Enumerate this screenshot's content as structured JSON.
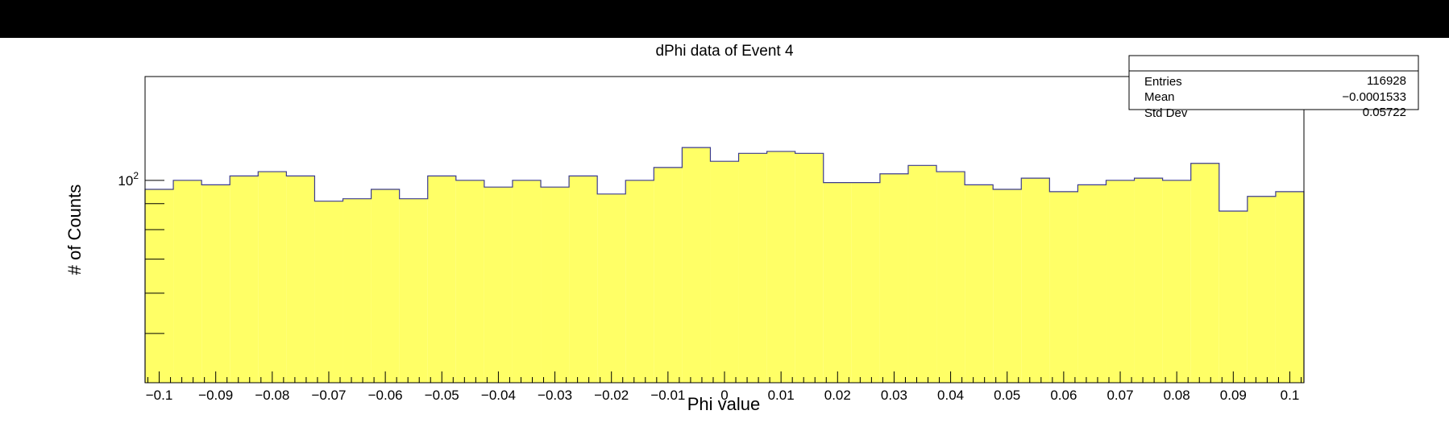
{
  "chart_data": {
    "type": "histogram",
    "title": "dPhi data of Event 4",
    "xlabel": "Phi value",
    "ylabel": "# of Counts",
    "xlim": [
      -0.1025,
      0.1025
    ],
    "ylog": true,
    "ylim": [
      40,
      160
    ],
    "fill_color": "#ffff66",
    "line_color": "#3b3b8f",
    "y_tick_labels": [
      {
        "value": 100,
        "base": "10",
        "exp": "2"
      }
    ],
    "x_tick_labels": [
      "−0.1",
      "−0.09",
      "−0.08",
      "−0.07",
      "−0.06",
      "−0.05",
      "−0.04",
      "−0.03",
      "−0.02",
      "−0.01",
      "0",
      "0.01",
      "0.02",
      "0.03",
      "0.04",
      "0.05",
      "0.06",
      "0.07",
      "0.08",
      "0.09",
      "0.1"
    ],
    "x_tick_values": [
      -0.1,
      -0.09,
      -0.08,
      -0.07,
      -0.06,
      -0.05,
      -0.04,
      -0.03,
      -0.02,
      -0.01,
      0,
      0.01,
      0.02,
      0.03,
      0.04,
      0.05,
      0.06,
      0.07,
      0.08,
      0.09,
      0.1
    ],
    "bin_edges": [
      -0.1025,
      -0.0975,
      -0.0925,
      -0.0875,
      -0.0825,
      -0.0775,
      -0.0725,
      -0.0675,
      -0.0625,
      -0.0575,
      -0.0525,
      -0.0475,
      -0.0425,
      -0.0375,
      -0.0325,
      -0.0275,
      -0.0225,
      -0.0175,
      -0.0125,
      -0.0075,
      -0.0025,
      0.0025,
      0.0075,
      0.0125,
      0.0175,
      0.0225,
      0.0275,
      0.0325,
      0.0375,
      0.0425,
      0.0475,
      0.0525,
      0.0575,
      0.0625,
      0.0675,
      0.0725,
      0.0775,
      0.0825,
      0.0875,
      0.0925,
      0.0975,
      0.1025
    ],
    "counts": [
      96,
      100,
      98,
      102,
      104,
      102,
      91,
      92,
      96,
      92,
      102,
      100,
      97,
      100,
      97,
      102,
      94,
      100,
      106,
      116,
      109,
      113,
      114,
      113,
      99,
      99,
      103,
      107,
      104,
      98,
      96,
      101,
      95,
      98,
      100,
      101,
      100,
      108,
      87,
      93,
      95
    ],
    "stats_box": {
      "rows": [
        {
          "label": "Entries",
          "value": "116928"
        },
        {
          "label": "Mean",
          "value": "−0.0001533"
        },
        {
          "label": "Std Dev",
          "value": "0.05722"
        }
      ]
    }
  }
}
